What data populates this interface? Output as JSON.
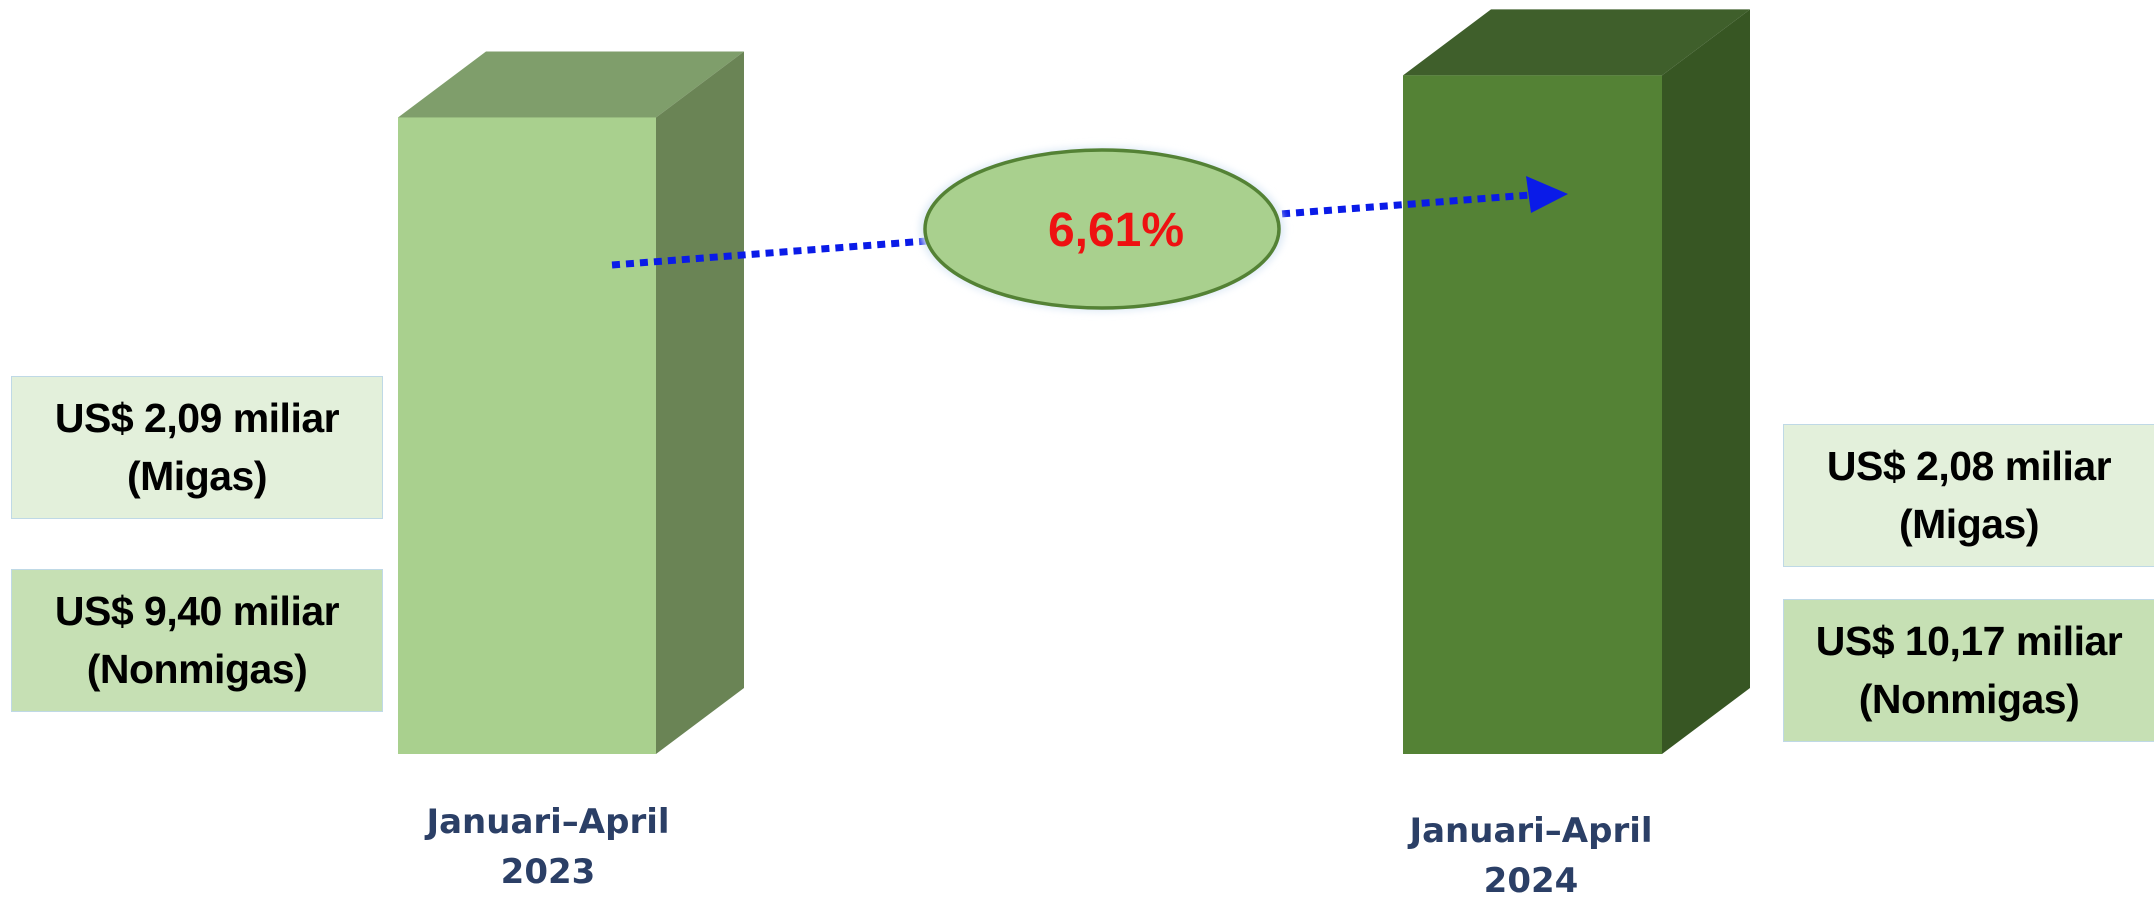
{
  "chart_data": {
    "type": "bar",
    "categories": [
      "Januari–April 2023",
      "Januari–April 2024"
    ],
    "growth_label": "6,61%",
    "growth_color": "#ee1111",
    "arrow_color": "#0a1be8",
    "bar_colors": {
      "2023": {
        "front": "#a9d08e",
        "top": "#7f9e6b",
        "side": "#6a8455"
      },
      "2024": {
        "front": "#548235",
        "top": "#3f5f2b",
        "side": "#375623"
      }
    },
    "series": [
      {
        "name": "Migas",
        "values": [
          2.09,
          2.08
        ]
      },
      {
        "name": "Nonmigas",
        "values": [
          9.4,
          10.17
        ]
      }
    ],
    "totals": [
      11.49,
      12.25
    ]
  },
  "labels": {
    "left": {
      "migas_value": "US$ 2,09 miliar",
      "migas_name": "(Migas)",
      "nonmigas_value": "US$ 9,40 miliar",
      "nonmigas_name": "(Nonmigas)",
      "period_line1": "Januari–April",
      "period_line2": "2023"
    },
    "right": {
      "migas_value": "US$ 2,08 miliar",
      "migas_name": "(Migas)",
      "nonmigas_value": "US$ 10,17 miliar",
      "nonmigas_name": "(Nonmigas)",
      "period_line1": "Januari–April",
      "period_line2": "2024"
    }
  }
}
